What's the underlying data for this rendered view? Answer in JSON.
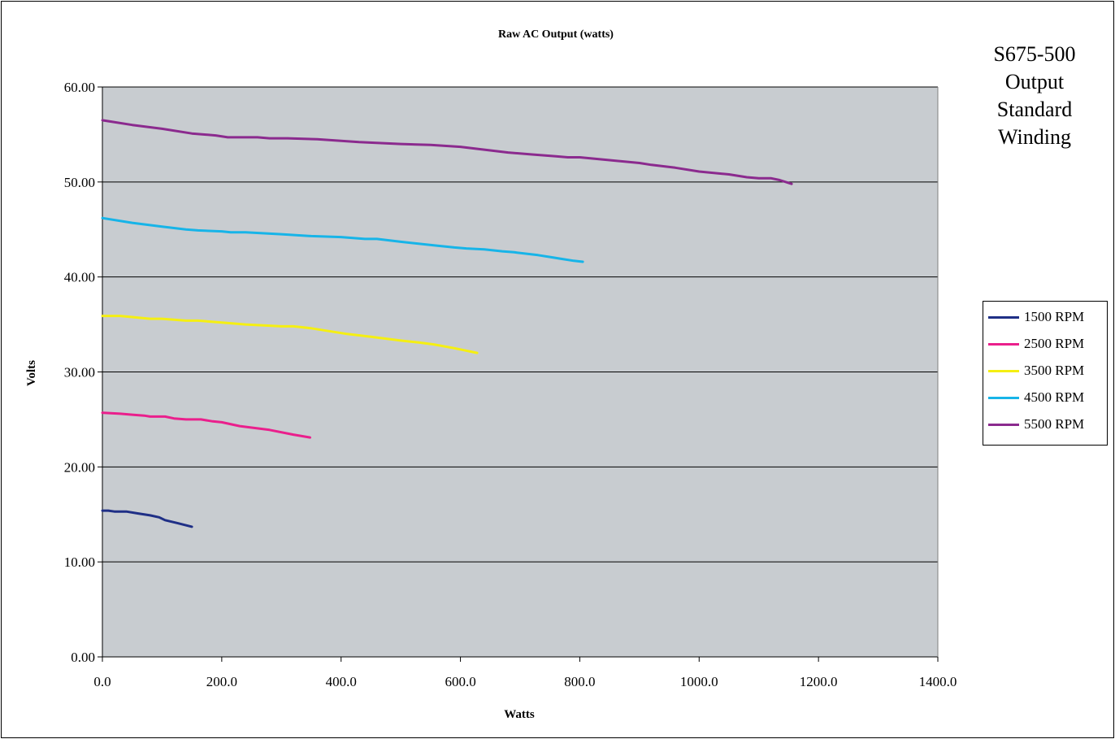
{
  "side_note": [
    "S675-500",
    "Output",
    "Standard",
    "Winding"
  ],
  "chart_data": {
    "type": "line",
    "title": "Raw AC Output (watts)",
    "xlabel": "Watts",
    "ylabel": "Volts",
    "xlim": [
      0,
      1400
    ],
    "ylim": [
      0,
      60
    ],
    "x_ticks": [
      "0.0",
      "200.0",
      "400.0",
      "600.0",
      "800.0",
      "1000.0",
      "1200.0",
      "1400.0"
    ],
    "y_ticks": [
      "0.00",
      "10.00",
      "20.00",
      "30.00",
      "40.00",
      "50.00",
      "60.00"
    ],
    "grid": "horizontal",
    "plot_background": "#c8ccd0",
    "legend_position": "right",
    "series": [
      {
        "name": "1500 RPM",
        "color": "#1f2f86",
        "points": [
          [
            0,
            15.4
          ],
          [
            10,
            15.4
          ],
          [
            20,
            15.3
          ],
          [
            40,
            15.3
          ],
          [
            60,
            15.1
          ],
          [
            80,
            14.9
          ],
          [
            95,
            14.7
          ],
          [
            105,
            14.4
          ],
          [
            125,
            14.1
          ],
          [
            150,
            13.7
          ]
        ]
      },
      {
        "name": "2500 RPM",
        "color": "#ea1f8c",
        "points": [
          [
            0,
            25.7
          ],
          [
            30,
            25.6
          ],
          [
            50,
            25.5
          ],
          [
            70,
            25.4
          ],
          [
            80,
            25.3
          ],
          [
            105,
            25.3
          ],
          [
            120,
            25.1
          ],
          [
            140,
            25.0
          ],
          [
            165,
            25.0
          ],
          [
            185,
            24.8
          ],
          [
            200,
            24.7
          ],
          [
            230,
            24.3
          ],
          [
            280,
            23.9
          ],
          [
            320,
            23.4
          ],
          [
            348,
            23.1
          ]
        ]
      },
      {
        "name": "3500 RPM",
        "color": "#f5ef12",
        "points": [
          [
            0,
            35.9
          ],
          [
            30,
            35.9
          ],
          [
            80,
            35.6
          ],
          [
            100,
            35.6
          ],
          [
            120,
            35.5
          ],
          [
            140,
            35.4
          ],
          [
            160,
            35.4
          ],
          [
            200,
            35.2
          ],
          [
            240,
            35.0
          ],
          [
            270,
            34.9
          ],
          [
            300,
            34.8
          ],
          [
            320,
            34.8
          ],
          [
            350,
            34.6
          ],
          [
            380,
            34.3
          ],
          [
            410,
            34.0
          ],
          [
            450,
            33.7
          ],
          [
            500,
            33.3
          ],
          [
            530,
            33.1
          ],
          [
            555,
            32.9
          ],
          [
            590,
            32.5
          ],
          [
            628,
            32.0
          ]
        ]
      },
      {
        "name": "4500 RPM",
        "color": "#17b4e8",
        "points": [
          [
            0,
            46.2
          ],
          [
            50,
            45.7
          ],
          [
            100,
            45.3
          ],
          [
            140,
            45.0
          ],
          [
            160,
            44.9
          ],
          [
            200,
            44.8
          ],
          [
            215,
            44.7
          ],
          [
            240,
            44.7
          ],
          [
            300,
            44.5
          ],
          [
            350,
            44.3
          ],
          [
            400,
            44.2
          ],
          [
            440,
            44.0
          ],
          [
            460,
            44.0
          ],
          [
            500,
            43.7
          ],
          [
            560,
            43.3
          ],
          [
            590,
            43.1
          ],
          [
            610,
            43.0
          ],
          [
            640,
            42.9
          ],
          [
            670,
            42.7
          ],
          [
            690,
            42.6
          ],
          [
            730,
            42.3
          ],
          [
            750,
            42.1
          ],
          [
            770,
            41.9
          ],
          [
            790,
            41.7
          ],
          [
            805,
            41.6
          ]
        ]
      },
      {
        "name": "5500 RPM",
        "color": "#8b2a8e",
        "points": [
          [
            0,
            56.5
          ],
          [
            50,
            56.0
          ],
          [
            100,
            55.6
          ],
          [
            150,
            55.1
          ],
          [
            190,
            54.9
          ],
          [
            210,
            54.7
          ],
          [
            260,
            54.7
          ],
          [
            280,
            54.6
          ],
          [
            310,
            54.6
          ],
          [
            360,
            54.5
          ],
          [
            430,
            54.2
          ],
          [
            500,
            54.0
          ],
          [
            550,
            53.9
          ],
          [
            600,
            53.7
          ],
          [
            640,
            53.4
          ],
          [
            680,
            53.1
          ],
          [
            720,
            52.9
          ],
          [
            740,
            52.8
          ],
          [
            760,
            52.7
          ],
          [
            780,
            52.6
          ],
          [
            800,
            52.6
          ],
          [
            850,
            52.3
          ],
          [
            900,
            52.0
          ],
          [
            920,
            51.8
          ],
          [
            960,
            51.5
          ],
          [
            1000,
            51.1
          ],
          [
            1050,
            50.8
          ],
          [
            1080,
            50.5
          ],
          [
            1100,
            50.4
          ],
          [
            1120,
            50.4
          ],
          [
            1135,
            50.2
          ],
          [
            1155,
            49.8
          ]
        ]
      }
    ]
  }
}
